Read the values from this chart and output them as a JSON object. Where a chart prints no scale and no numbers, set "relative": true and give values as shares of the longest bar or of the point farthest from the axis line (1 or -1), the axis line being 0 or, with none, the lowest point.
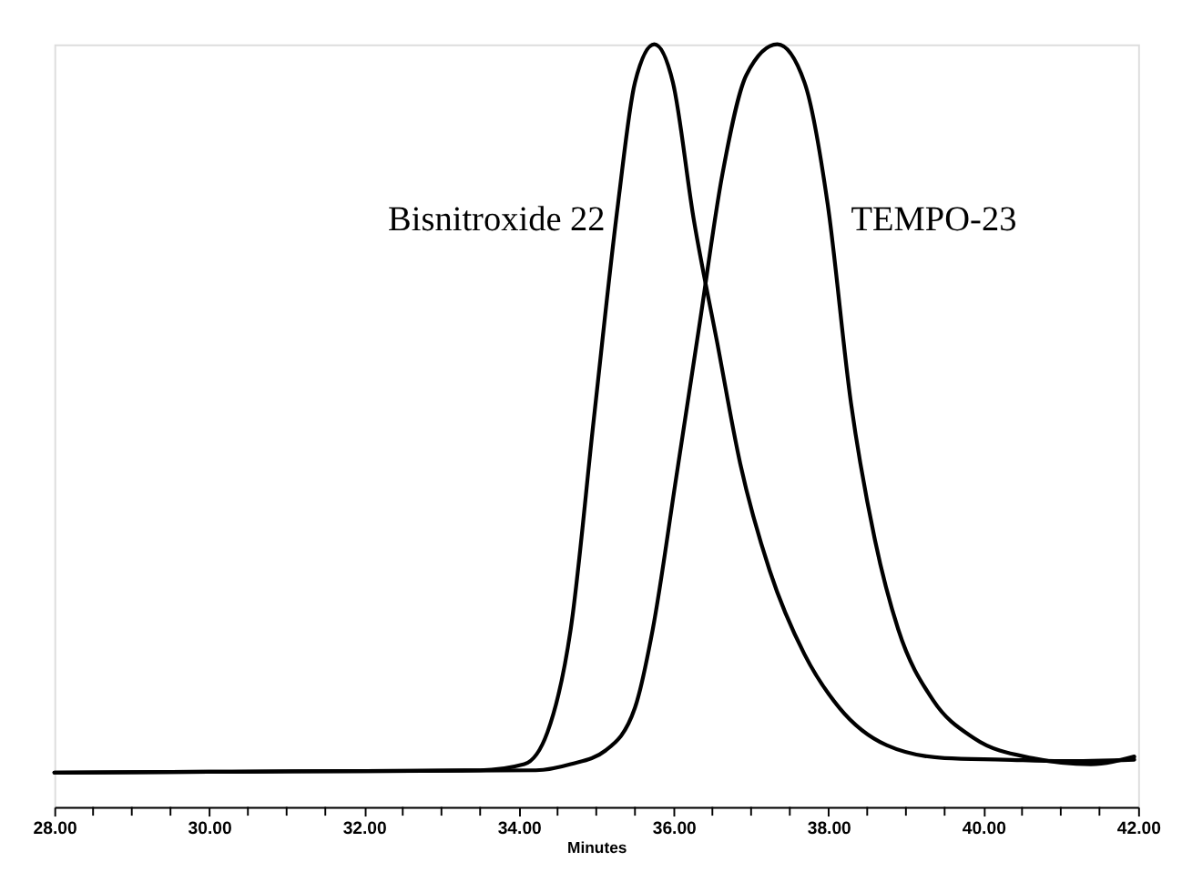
{
  "chart_data": {
    "type": "line",
    "relative": true,
    "xlabel": "Minutes",
    "xlim": [
      28,
      42
    ],
    "xticks": [
      {
        "value": 28,
        "label": "28.00"
      },
      {
        "value": 28.5,
        "label": null
      },
      {
        "value": 29,
        "label": null
      },
      {
        "value": 29.5,
        "label": null
      },
      {
        "value": 30,
        "label": "30.00"
      },
      {
        "value": 30.5,
        "label": null
      },
      {
        "value": 31,
        "label": null
      },
      {
        "value": 31.5,
        "label": null
      },
      {
        "value": 32,
        "label": "32.00"
      },
      {
        "value": 32.5,
        "label": null
      },
      {
        "value": 33,
        "label": null
      },
      {
        "value": 33.5,
        "label": null
      },
      {
        "value": 34,
        "label": "34.00"
      },
      {
        "value": 34.5,
        "label": null
      },
      {
        "value": 35,
        "label": null
      },
      {
        "value": 35.5,
        "label": null
      },
      {
        "value": 36,
        "label": "36.00"
      },
      {
        "value": 36.5,
        "label": null
      },
      {
        "value": 37,
        "label": null
      },
      {
        "value": 37.5,
        "label": null
      },
      {
        "value": 38,
        "label": "38.00"
      },
      {
        "value": 38.5,
        "label": null
      },
      {
        "value": 39,
        "label": null
      },
      {
        "value": 39.5,
        "label": null
      },
      {
        "value": 40,
        "label": "40.00"
      },
      {
        "value": 40.5,
        "label": null
      },
      {
        "value": 41,
        "label": null
      },
      {
        "value": 41.5,
        "label": null
      },
      {
        "value": 42,
        "label": "42.00"
      }
    ],
    "grid": false,
    "marker": "none",
    "line_style": "solid",
    "series": [
      {
        "name": "Bisnitroxide 22",
        "color": "#000000",
        "x": [
          28,
          30,
          32,
          33.5,
          34.07,
          34.37,
          34.67,
          34.97,
          35.28,
          35.5,
          35.75,
          35.99,
          36.26,
          36.56,
          36.86,
          37.24,
          37.69,
          38.14,
          38.75,
          39.5,
          40.26,
          41.01,
          41.95
        ],
        "values": [
          0.045,
          0.046,
          0.047,
          0.048,
          0.056,
          0.098,
          0.233,
          0.51,
          0.79,
          0.95,
          1.0,
          0.95,
          0.77,
          0.61,
          0.45,
          0.31,
          0.2,
          0.13,
          0.081,
          0.064,
          0.062,
          0.06,
          0.062
        ]
      },
      {
        "name": "TEMPO-23",
        "color": "#000000",
        "x": [
          28,
          30,
          32,
          34.22,
          34.67,
          35.12,
          35.5,
          35.73,
          36.03,
          36.33,
          36.63,
          36.94,
          37.34,
          37.69,
          37.99,
          38.29,
          38.6,
          38.9,
          39.35,
          39.88,
          40.63,
          41.39,
          41.95
        ],
        "values": [
          0.045,
          0.046,
          0.047,
          0.048,
          0.056,
          0.074,
          0.13,
          0.233,
          0.43,
          0.63,
          0.83,
          0.96,
          1.0,
          0.95,
          0.79,
          0.53,
          0.35,
          0.233,
          0.14,
          0.09,
          0.064,
          0.056,
          0.066
        ]
      }
    ]
  }
}
